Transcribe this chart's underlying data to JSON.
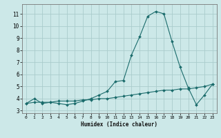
{
  "xlabel": "Humidex (Indice chaleur)",
  "ylabel": "",
  "background_color": "#cce8e8",
  "grid_color": "#aacccc",
  "line_color": "#1a6b6b",
  "xlim": [
    -0.5,
    23.5
  ],
  "ylim": [
    2.8,
    11.8
  ],
  "yticks": [
    3,
    4,
    5,
    6,
    7,
    8,
    9,
    10,
    11
  ],
  "xticks": [
    0,
    1,
    2,
    3,
    4,
    5,
    6,
    7,
    8,
    9,
    10,
    11,
    12,
    13,
    14,
    15,
    16,
    17,
    18,
    19,
    20,
    21,
    22,
    23
  ],
  "line1_x": [
    0,
    1,
    2,
    3,
    4,
    5,
    6,
    7,
    8,
    9,
    10,
    11,
    12,
    13,
    14,
    15,
    16,
    17,
    18,
    19,
    20,
    21,
    22,
    23
  ],
  "line1_y": [
    3.6,
    4.0,
    3.6,
    3.7,
    3.6,
    3.5,
    3.6,
    3.8,
    4.0,
    4.3,
    4.6,
    5.4,
    5.5,
    7.6,
    9.1,
    10.8,
    11.2,
    11.0,
    8.7,
    6.6,
    4.9,
    3.5,
    4.3,
    5.2
  ],
  "line2_x": [
    0,
    1,
    2,
    3,
    4,
    5,
    6,
    7,
    8,
    9,
    10,
    11,
    12,
    13,
    14,
    15,
    16,
    17,
    18,
    19,
    20,
    21,
    22,
    23
  ],
  "line2_y": [
    3.6,
    3.7,
    3.7,
    3.7,
    3.8,
    3.8,
    3.8,
    3.9,
    3.9,
    4.0,
    4.0,
    4.1,
    4.2,
    4.3,
    4.4,
    4.5,
    4.6,
    4.7,
    4.7,
    4.8,
    4.8,
    4.9,
    5.0,
    5.2
  ]
}
